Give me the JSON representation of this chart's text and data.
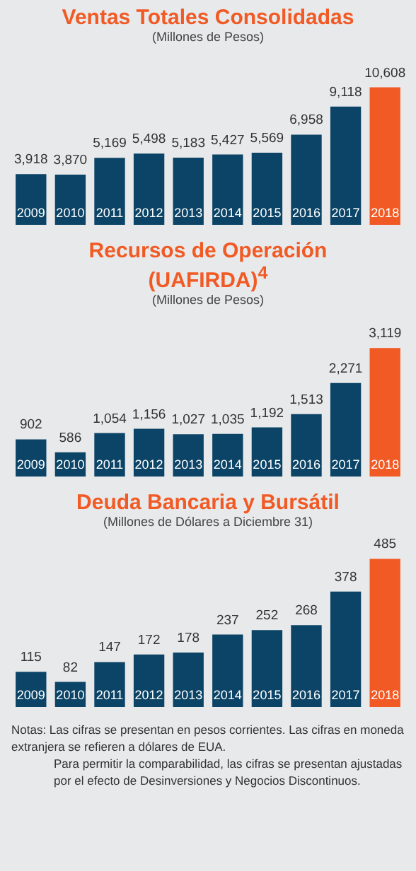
{
  "chart_data": [
    {
      "type": "bar",
      "title": "Ventas Totales Consolidadas",
      "subtitle": "(Millones de Pesos)",
      "categories": [
        "2009",
        "2010",
        "2011",
        "2012",
        "2013",
        "2014",
        "2015",
        "2016",
        "2017",
        "2018"
      ],
      "values": [
        3918,
        3870,
        5169,
        5498,
        5183,
        5427,
        5569,
        6958,
        9118,
        10608
      ],
      "value_labels": [
        "3,918",
        "3,870",
        "5,169",
        "5,498",
        "5,183",
        "5,427",
        "5,569",
        "6,958",
        "9,118",
        "10,608"
      ],
      "colors": [
        "#0b4466",
        "#0b4466",
        "#0b4466",
        "#0b4466",
        "#0b4466",
        "#0b4466",
        "#0b4466",
        "#0b4466",
        "#0b4466",
        "#f15a24"
      ],
      "data_labels": false
    },
    {
      "type": "bar",
      "title": "Recursos de Operación (UAFIRDA)$^{4}$",
      "subtitle": "(Millones de Pesos)",
      "categories": [
        "2009",
        "2010",
        "2011",
        "2012",
        "2013",
        "2014",
        "2015",
        "2016",
        "2017",
        "2018"
      ],
      "values": [
        902,
        586,
        1054,
        1156,
        1027,
        1035,
        1192,
        1513,
        2271,
        3119
      ],
      "value_labels": [
        "902",
        "586",
        "1,054",
        "1,156",
        "1,027",
        "1,035",
        "1,192",
        "1,513",
        "2,271",
        "3,119"
      ],
      "colors": [
        "#0b4466",
        "#0b4466",
        "#0b4466",
        "#0b4466",
        "#0b4466",
        "#0b4466",
        "#0b4466",
        "#0b4466",
        "#0b4466",
        "#f15a24"
      ]
    },
    {
      "type": "bar",
      "title": "Deuda Bancaria y Bursátil",
      "subtitle": "(Millones de Dólares a Diciembre 31)",
      "categories": [
        "2009",
        "2010",
        "2011",
        "2012",
        "2013",
        "2014",
        "2015",
        "2016",
        "2017",
        "2018"
      ],
      "values": [
        115,
        82,
        147,
        172,
        178,
        237,
        252,
        268,
        378,
        485
      ],
      "colors": [
        "#0b4466",
        "#0b4466",
        "#0b4466",
        "#0b4466",
        "#0b4466",
        "#0b4466",
        "#0b4466",
        "#0b4466",
        "#0b4466",
        "#f15a24"
      ],
      "data_labels": true,
      "annotations": [
        "Notas: Las cifras se presentan en pesos corrientes. Las cifras en moneda extranjera se refieren a dólares de EUA.",
        "Para permitir la comparabilidad, las cifras se presentan ajustadas por el efecto de Desinversiones y Negocios Discontinuos."
      ]
    }
  ]
}
